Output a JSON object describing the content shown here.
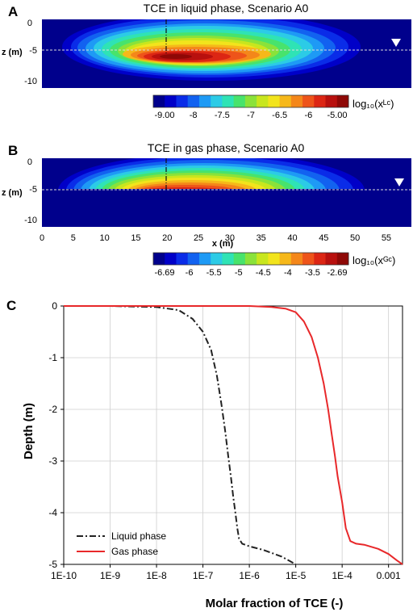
{
  "panels": [
    {
      "letter": "A",
      "title": "TCE in liquid phase, Scenario A0"
    },
    {
      "letter": "B",
      "title": "TCE in gas phase, Scenario A0"
    },
    {
      "letter": "C"
    }
  ],
  "contour_axes": {
    "z_label": "z (m)",
    "z_ticks": [
      "0",
      "-5",
      "-10"
    ],
    "x_label": "x (m)",
    "x_ticks": [
      "0",
      "5",
      "10",
      "15",
      "20",
      "25",
      "30",
      "35",
      "40",
      "45",
      "50",
      "55"
    ]
  },
  "colorbars": [
    {
      "label": "log₁₀(xᴸᶜ)",
      "ticks": [
        "-9.00",
        "-8",
        "-7.5",
        "-7",
        "-6.5",
        "-6",
        "-5.00"
      ],
      "colors": [
        "#00008c",
        "#0000c8",
        "#0a2ce8",
        "#1262f0",
        "#1e9af5",
        "#2ccbe6",
        "#2fe3b5",
        "#48e36c",
        "#8ae23a",
        "#c8e61e",
        "#f2e41c",
        "#f6b81a",
        "#f4871a",
        "#ee541a",
        "#dc2614",
        "#b8100e",
        "#8e0806"
      ]
    },
    {
      "label": "log₁₀(xᴳᶜ)",
      "ticks": [
        "-6.69",
        "-6",
        "-5.5",
        "-5",
        "-4.5",
        "-4",
        "-3.5",
        "-2.69"
      ],
      "colors": [
        "#00008c",
        "#0000c8",
        "#0a2ce8",
        "#1262f0",
        "#1e9af5",
        "#2ccbe6",
        "#2fe3b5",
        "#48e36c",
        "#8ae23a",
        "#c8e61e",
        "#f2e41c",
        "#f6b81a",
        "#f4871a",
        "#ee541a",
        "#dc2614",
        "#b8100e",
        "#8e0806"
      ]
    }
  ],
  "chart_data": {
    "type": "line",
    "xlabel": "Molar fraction of TCE (-)",
    "ylabel": "Depth (m)",
    "x_scale": "log",
    "xlim": [
      1e-10,
      0.002
    ],
    "ylim": [
      -5,
      0
    ],
    "x_tick_labels": [
      "1E-10",
      "1E-9",
      "1E-8",
      "1E-7",
      "1E-6",
      "1E-5",
      "1E-4",
      "0.001"
    ],
    "y_tick_labels": [
      "0",
      "-1",
      "-2",
      "-3",
      "-4",
      "-5"
    ],
    "grid": true,
    "legend_position": "bottom-left",
    "series": [
      {
        "name": "Liquid phase",
        "color": "#222222",
        "style": "dash-dot",
        "x": [
          1e-10,
          1e-09,
          1e-08,
          3e-08,
          6e-08,
          1e-07,
          1.5e-07,
          2e-07,
          2.5e-07,
          3e-07,
          3.5e-07,
          4e-07,
          4.5e-07,
          5e-07,
          5.5e-07,
          6e-07,
          7e-07,
          1e-06,
          2e-06,
          5e-06,
          1e-05
        ],
        "y": [
          0,
          0,
          -0.02,
          -0.08,
          -0.25,
          -0.5,
          -0.85,
          -1.35,
          -1.9,
          -2.4,
          -2.9,
          -3.3,
          -3.7,
          -4.0,
          -4.3,
          -4.5,
          -4.6,
          -4.65,
          -4.72,
          -4.85,
          -5.0
        ]
      },
      {
        "name": "Gas phase",
        "color": "#e8282a",
        "style": "solid",
        "x": [
          1e-10,
          1e-08,
          1e-07,
          1e-06,
          3e-06,
          6e-06,
          1e-05,
          1.5e-05,
          2.2e-05,
          3e-05,
          4e-05,
          5e-05,
          6e-05,
          7e-05,
          8e-05,
          0.0001,
          0.00012,
          0.00015,
          0.0002,
          0.0003,
          0.0006,
          0.001,
          0.0015,
          0.002
        ],
        "y": [
          0,
          0,
          0,
          0,
          -0.02,
          -0.05,
          -0.12,
          -0.3,
          -0.6,
          -1.0,
          -1.5,
          -2.0,
          -2.5,
          -2.9,
          -3.3,
          -3.8,
          -4.3,
          -4.55,
          -4.6,
          -4.62,
          -4.7,
          -4.8,
          -4.92,
          -5.0
        ]
      }
    ]
  }
}
